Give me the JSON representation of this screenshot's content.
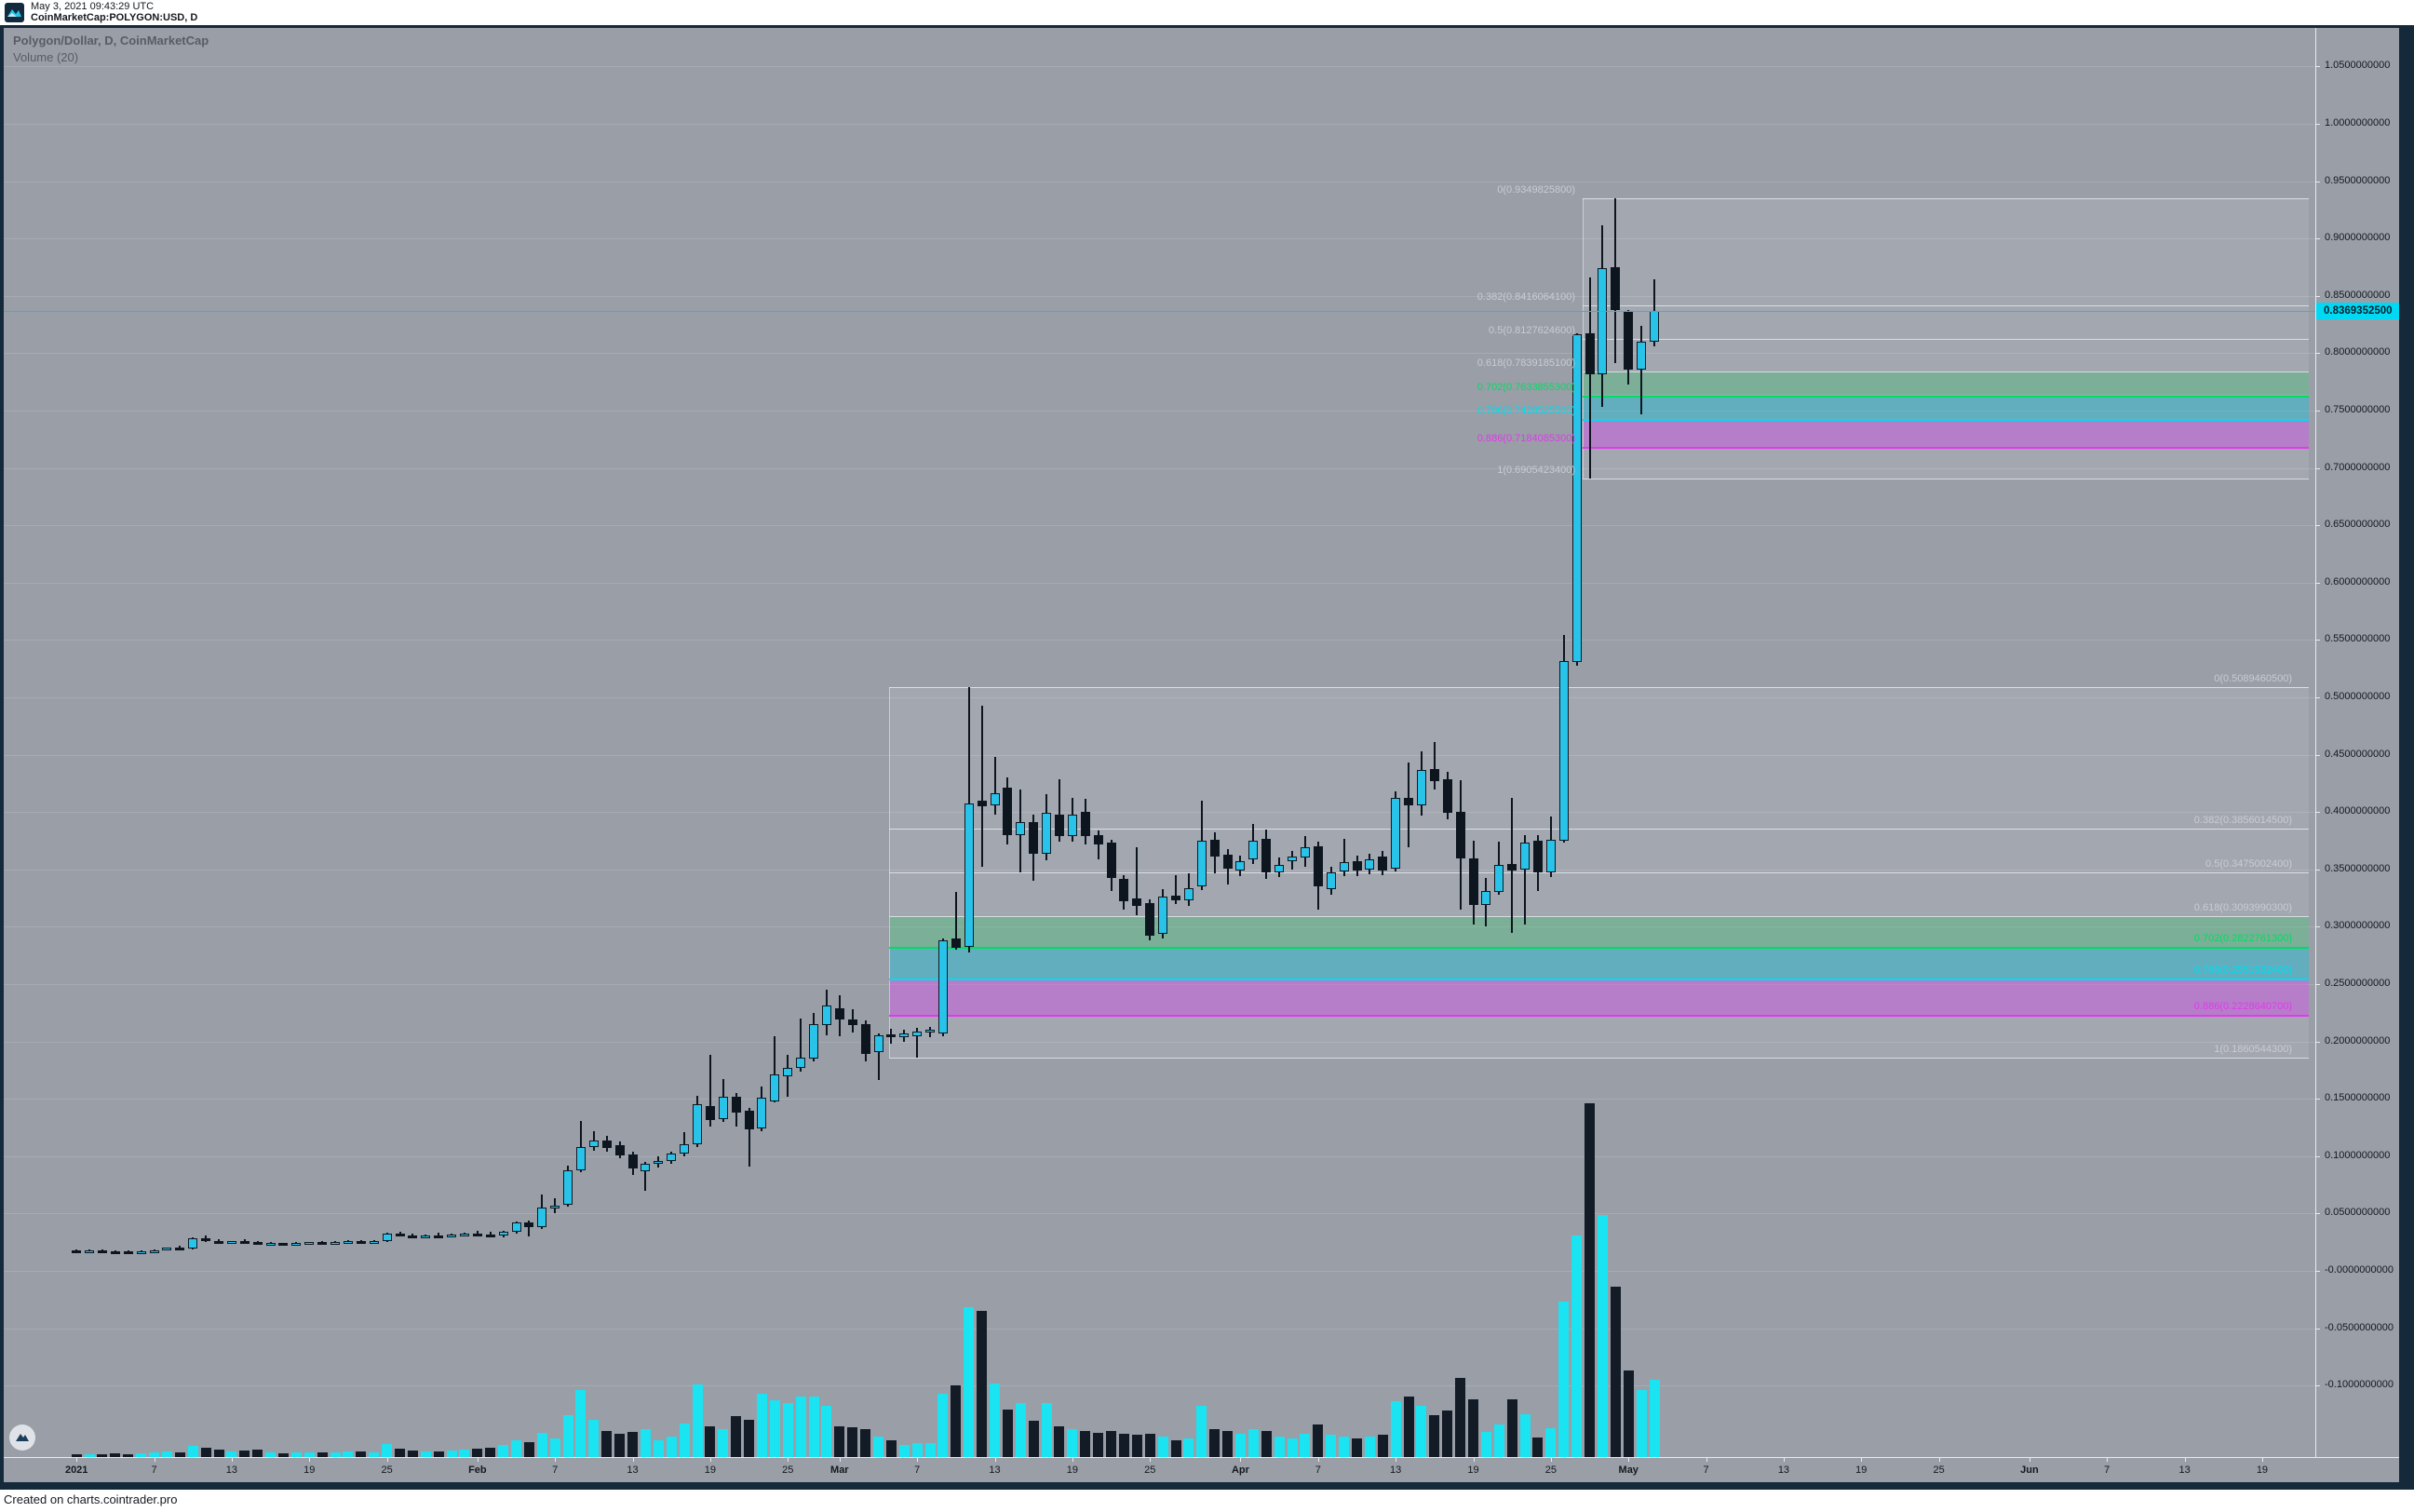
{
  "header": {
    "timestamp": "May 3, 2021 09:43:29 UTC",
    "symbol": "CoinMarketCap:POLYGON:USD, D"
  },
  "legend": {
    "title": "Polygon/Dollar, D, CoinMarketCap",
    "indicator": "Volume (20)"
  },
  "price_label": "0.8369352500",
  "footer": {
    "text": "Created on charts.cointrader.pro"
  },
  "colors": {
    "background": "#999ea7",
    "frame": "#14293a",
    "candle_up": "#29c3e9",
    "candle_down": "#0d151e",
    "volume_up": "#1ae3f2",
    "volume_down": "#131b26",
    "price_line": "#00c9e8",
    "price_tag_bg": "#00d9f4",
    "fib_gray": "#c9ccd2",
    "fib_green": "#00dd63",
    "fib_cyan": "#00dcf0",
    "fib_magenta": "#e438ee",
    "band_green": "rgba(60,190,110,0.38)",
    "band_teal": "rgba(0,185,215,0.40)",
    "band_magenta": "rgba(210,70,235,0.42)"
  },
  "y_axis": [
    {
      "v": 1.05,
      "label": "1.0500000000"
    },
    {
      "v": 1.0,
      "label": "1.0000000000"
    },
    {
      "v": 0.95,
      "label": "0.9500000000"
    },
    {
      "v": 0.9,
      "label": "0.9000000000"
    },
    {
      "v": 0.85,
      "label": "0.8500000000"
    },
    {
      "v": 0.8,
      "label": "0.8000000000"
    },
    {
      "v": 0.75,
      "label": "0.7500000000"
    },
    {
      "v": 0.7,
      "label": "0.7000000000"
    },
    {
      "v": 0.65,
      "label": "0.6500000000"
    },
    {
      "v": 0.6,
      "label": "0.6000000000"
    },
    {
      "v": 0.55,
      "label": "0.5500000000"
    },
    {
      "v": 0.5,
      "label": "0.5000000000"
    },
    {
      "v": 0.45,
      "label": "0.4500000000"
    },
    {
      "v": 0.4,
      "label": "0.4000000000"
    },
    {
      "v": 0.35,
      "label": "0.3500000000"
    },
    {
      "v": 0.3,
      "label": "0.3000000000"
    },
    {
      "v": 0.25,
      "label": "0.2500000000"
    },
    {
      "v": 0.2,
      "label": "0.2000000000"
    },
    {
      "v": 0.15,
      "label": "0.1500000000"
    },
    {
      "v": 0.1,
      "label": "0.1000000000"
    },
    {
      "v": 0.05,
      "label": "0.0500000000"
    },
    {
      "v": 0.0,
      "label": "-0.0000000000"
    },
    {
      "v": -0.05,
      "label": "-0.0500000000"
    },
    {
      "v": -0.1,
      "label": "-0.1000000000"
    }
  ],
  "x_axis": [
    {
      "label": "2021",
      "day": 0,
      "major": true
    },
    {
      "label": "7",
      "day": 6,
      "major": false
    },
    {
      "label": "13",
      "day": 12,
      "major": false
    },
    {
      "label": "19",
      "day": 18,
      "major": false
    },
    {
      "label": "25",
      "day": 24,
      "major": false
    },
    {
      "label": "Feb",
      "day": 31,
      "major": true
    },
    {
      "label": "7",
      "day": 37,
      "major": false
    },
    {
      "label": "13",
      "day": 43,
      "major": false
    },
    {
      "label": "19",
      "day": 49,
      "major": false
    },
    {
      "label": "25",
      "day": 55,
      "major": false
    },
    {
      "label": "Mar",
      "day": 59,
      "major": true
    },
    {
      "label": "7",
      "day": 65,
      "major": false
    },
    {
      "label": "13",
      "day": 71,
      "major": false
    },
    {
      "label": "19",
      "day": 77,
      "major": false
    },
    {
      "label": "25",
      "day": 83,
      "major": false
    },
    {
      "label": "Apr",
      "day": 90,
      "major": true
    },
    {
      "label": "7",
      "day": 96,
      "major": false
    },
    {
      "label": "13",
      "day": 102,
      "major": false
    },
    {
      "label": "19",
      "day": 108,
      "major": false
    },
    {
      "label": "25",
      "day": 114,
      "major": false
    },
    {
      "label": "May",
      "day": 120,
      "major": true
    },
    {
      "label": "7",
      "day": 126,
      "major": false
    },
    {
      "label": "13",
      "day": 132,
      "major": false
    },
    {
      "label": "19",
      "day": 138,
      "major": false
    },
    {
      "label": "25",
      "day": 144,
      "major": false
    },
    {
      "label": "Jun",
      "day": 151,
      "major": true
    },
    {
      "label": "7",
      "day": 157,
      "major": false
    },
    {
      "label": "13",
      "day": 163,
      "major": false
    },
    {
      "label": "19",
      "day": 169,
      "major": false
    }
  ],
  "fib_upper": {
    "levels": [
      {
        "label": "0(0.9349825800)",
        "value": 0.93498258,
        "color": "gray"
      },
      {
        "label": "0.382(0.8416064100)",
        "value": 0.84160641,
        "color": "gray"
      },
      {
        "label": "0.5(0.8127624600)",
        "value": 0.81276246,
        "color": "gray"
      },
      {
        "label": "0.618(0.7839185100)",
        "value": 0.78391851,
        "color": "gray"
      },
      {
        "label": "0.702(0.7633855300)",
        "value": 0.76338553,
        "color": "green"
      },
      {
        "label": "0.786(0.7428525500)",
        "value": 0.74285255,
        "color": "cyan"
      },
      {
        "label": "0.886(0.7184085300)",
        "value": 0.71840853,
        "color": "magenta"
      },
      {
        "label": "1(0.6905423400)",
        "value": 0.69054234,
        "color": "gray"
      }
    ]
  },
  "fib_lower": {
    "levels": [
      {
        "label": "0(0.5089460500)",
        "value": 0.50894605,
        "color": "gray"
      },
      {
        "label": "0.382(0.3856014500)",
        "value": 0.38560145,
        "color": "gray"
      },
      {
        "label": "0.5(0.3475002400)",
        "value": 0.34750024,
        "color": "gray"
      },
      {
        "label": "0.618(0.3093990300)",
        "value": 0.30939903,
        "color": "gray"
      },
      {
        "label": "0.702(0.2822761300)",
        "value": 0.28227613,
        "color": "green"
      },
      {
        "label": "0.786(0.2551532400)",
        "value": 0.25515324,
        "color": "cyan"
      },
      {
        "label": "0.886(0.2228640700)",
        "value": 0.22286407,
        "color": "magenta"
      },
      {
        "label": "1(0.1860544300)",
        "value": 0.18605443,
        "color": "gray"
      }
    ]
  },
  "chart_data": {
    "type": "candlestick+volume",
    "title": "Polygon/Dollar, D, CoinMarketCap",
    "symbol": "POLYGON:USD",
    "interval": "D",
    "start_date": "2021-01-01",
    "last_price": 0.83693525,
    "ylim": [
      -0.125,
      1.08
    ],
    "columns": [
      "open",
      "high",
      "low",
      "close",
      "volume_rel"
    ],
    "candles": [
      [
        0.018,
        0.019,
        0.017,
        0.0175,
        3
      ],
      [
        0.0175,
        0.0185,
        0.0168,
        0.0178,
        3
      ],
      [
        0.0178,
        0.0186,
        0.017,
        0.0172,
        3
      ],
      [
        0.0172,
        0.018,
        0.0162,
        0.0168,
        4
      ],
      [
        0.0168,
        0.0176,
        0.016,
        0.0165,
        3
      ],
      [
        0.0165,
        0.0178,
        0.0162,
        0.0174,
        4
      ],
      [
        0.0174,
        0.0188,
        0.017,
        0.018,
        5
      ],
      [
        0.018,
        0.0205,
        0.0176,
        0.02,
        6
      ],
      [
        0.02,
        0.0218,
        0.0192,
        0.0196,
        5
      ],
      [
        0.0196,
        0.0292,
        0.019,
        0.0282,
        12
      ],
      [
        0.0282,
        0.0305,
        0.0255,
        0.0262,
        10
      ],
      [
        0.0262,
        0.0275,
        0.0238,
        0.0248,
        8
      ],
      [
        0.0248,
        0.0262,
        0.0242,
        0.0256,
        6
      ],
      [
        0.0256,
        0.0278,
        0.0248,
        0.025,
        7
      ],
      [
        0.025,
        0.0258,
        0.0228,
        0.0236,
        8
      ],
      [
        0.0236,
        0.0248,
        0.0226,
        0.024,
        5
      ],
      [
        0.024,
        0.0247,
        0.023,
        0.0235,
        4
      ],
      [
        0.0235,
        0.0249,
        0.0229,
        0.0244,
        5
      ],
      [
        0.0244,
        0.0254,
        0.0236,
        0.0249,
        5
      ],
      [
        0.0249,
        0.026,
        0.024,
        0.0246,
        5
      ],
      [
        0.0246,
        0.0257,
        0.0239,
        0.0253,
        5
      ],
      [
        0.0253,
        0.0268,
        0.0246,
        0.0261,
        6
      ],
      [
        0.0261,
        0.0269,
        0.0248,
        0.0254,
        6
      ],
      [
        0.0254,
        0.0264,
        0.0244,
        0.0259,
        5
      ],
      [
        0.0259,
        0.033,
        0.025,
        0.0322,
        14
      ],
      [
        0.0322,
        0.034,
        0.03,
        0.031,
        9
      ],
      [
        0.031,
        0.0325,
        0.0295,
        0.0302,
        7
      ],
      [
        0.0302,
        0.0318,
        0.0292,
        0.0312,
        6
      ],
      [
        0.0312,
        0.033,
        0.03,
        0.0308,
        6
      ],
      [
        0.0308,
        0.0322,
        0.0296,
        0.0316,
        7
      ],
      [
        0.0316,
        0.0336,
        0.0305,
        0.0328,
        8
      ],
      [
        0.0328,
        0.0345,
        0.0312,
        0.032,
        9
      ],
      [
        0.032,
        0.0338,
        0.0298,
        0.0305,
        10
      ],
      [
        0.0305,
        0.035,
        0.029,
        0.034,
        13
      ],
      [
        0.034,
        0.0432,
        0.0328,
        0.042,
        18
      ],
      [
        0.042,
        0.0438,
        0.03,
        0.038,
        16
      ],
      [
        0.038,
        0.0666,
        0.0368,
        0.055,
        26
      ],
      [
        0.056,
        0.063,
        0.0505,
        0.057,
        20
      ],
      [
        0.0575,
        0.092,
        0.0558,
        0.0876,
        45
      ],
      [
        0.088,
        0.131,
        0.086,
        0.108,
        72
      ],
      [
        0.108,
        0.122,
        0.1045,
        0.114,
        40
      ],
      [
        0.114,
        0.118,
        0.1035,
        0.107,
        28
      ],
      [
        0.1095,
        0.113,
        0.0985,
        0.101,
        25
      ],
      [
        0.1015,
        0.104,
        0.0836,
        0.089,
        27
      ],
      [
        0.0865,
        0.095,
        0.07,
        0.0935,
        30
      ],
      [
        0.0935,
        0.1,
        0.0905,
        0.096,
        18
      ],
      [
        0.096,
        0.104,
        0.093,
        0.102,
        22
      ],
      [
        0.102,
        0.121,
        0.1,
        0.11,
        36
      ],
      [
        0.11,
        0.153,
        0.108,
        0.145,
        78
      ],
      [
        0.1437,
        0.188,
        0.126,
        0.1315,
        33
      ],
      [
        0.132,
        0.167,
        0.13,
        0.152,
        30
      ],
      [
        0.152,
        0.155,
        0.126,
        0.138,
        44
      ],
      [
        0.1396,
        0.142,
        0.0909,
        0.1234,
        40
      ],
      [
        0.124,
        0.161,
        0.122,
        0.151,
        68
      ],
      [
        0.148,
        0.2045,
        0.147,
        0.171,
        61
      ],
      [
        0.17,
        0.188,
        0.152,
        0.177,
        58
      ],
      [
        0.177,
        0.22,
        0.174,
        0.186,
        65
      ],
      [
        0.185,
        0.225,
        0.183,
        0.215,
        65
      ],
      [
        0.214,
        0.245,
        0.205,
        0.231,
        55
      ],
      [
        0.229,
        0.24,
        0.2045,
        0.219,
        33
      ],
      [
        0.219,
        0.228,
        0.208,
        0.214,
        32
      ],
      [
        0.215,
        0.218,
        0.1826,
        0.189,
        30
      ],
      [
        0.191,
        0.207,
        0.166,
        0.205,
        22
      ],
      [
        0.206,
        0.211,
        0.198,
        0.204,
        18
      ],
      [
        0.204,
        0.21,
        0.2,
        0.207,
        13
      ],
      [
        0.2045,
        0.212,
        0.1861,
        0.2086,
        15
      ],
      [
        0.2086,
        0.213,
        0.204,
        0.21,
        15
      ],
      [
        0.207,
        0.29,
        0.2045,
        0.288,
        68
      ],
      [
        0.29,
        0.33,
        0.28,
        0.282,
        77
      ],
      [
        0.2825,
        0.5089,
        0.2776,
        0.4075,
        161
      ],
      [
        0.41,
        0.493,
        0.352,
        0.405,
        157
      ],
      [
        0.406,
        0.448,
        0.398,
        0.416,
        79
      ],
      [
        0.421,
        0.43,
        0.372,
        0.38,
        51
      ],
      [
        0.38,
        0.4196,
        0.347,
        0.391,
        58
      ],
      [
        0.391,
        0.398,
        0.34,
        0.3636,
        39
      ],
      [
        0.364,
        0.4155,
        0.358,
        0.399,
        58
      ],
      [
        0.398,
        0.4285,
        0.374,
        0.379,
        33
      ],
      [
        0.379,
        0.412,
        0.374,
        0.398,
        30
      ],
      [
        0.4,
        0.4115,
        0.372,
        0.379,
        28
      ],
      [
        0.38,
        0.384,
        0.359,
        0.372,
        26
      ],
      [
        0.373,
        0.376,
        0.331,
        0.3425,
        28
      ],
      [
        0.342,
        0.345,
        0.315,
        0.322,
        25
      ],
      [
        0.325,
        0.369,
        0.31,
        0.318,
        24
      ],
      [
        0.321,
        0.324,
        0.288,
        0.292,
        25
      ],
      [
        0.294,
        0.333,
        0.29,
        0.326,
        22
      ],
      [
        0.327,
        0.345,
        0.32,
        0.323,
        18
      ],
      [
        0.323,
        0.3466,
        0.318,
        0.334,
        20
      ],
      [
        0.335,
        0.41,
        0.332,
        0.375,
        55
      ],
      [
        0.376,
        0.382,
        0.3466,
        0.361,
        30
      ],
      [
        0.363,
        0.368,
        0.337,
        0.3506,
        28
      ],
      [
        0.349,
        0.362,
        0.344,
        0.357,
        25
      ],
      [
        0.359,
        0.39,
        0.355,
        0.375,
        30
      ],
      [
        0.377,
        0.385,
        0.342,
        0.347,
        28
      ],
      [
        0.347,
        0.36,
        0.343,
        0.354,
        22
      ],
      [
        0.357,
        0.366,
        0.35,
        0.361,
        20
      ],
      [
        0.36,
        0.379,
        0.352,
        0.369,
        25
      ],
      [
        0.37,
        0.374,
        0.315,
        0.335,
        35
      ],
      [
        0.333,
        0.352,
        0.328,
        0.347,
        24
      ],
      [
        0.348,
        0.3766,
        0.344,
        0.356,
        22
      ],
      [
        0.357,
        0.362,
        0.344,
        0.349,
        20
      ],
      [
        0.35,
        0.364,
        0.346,
        0.359,
        22
      ],
      [
        0.361,
        0.366,
        0.345,
        0.349,
        24
      ],
      [
        0.351,
        0.418,
        0.348,
        0.412,
        60
      ],
      [
        0.412,
        0.443,
        0.369,
        0.406,
        65
      ],
      [
        0.406,
        0.453,
        0.397,
        0.4366,
        55
      ],
      [
        0.4375,
        0.461,
        0.42,
        0.427,
        45
      ],
      [
        0.4285,
        0.435,
        0.394,
        0.399,
        50
      ],
      [
        0.4,
        0.428,
        0.315,
        0.3596,
        85
      ],
      [
        0.3596,
        0.375,
        0.302,
        0.319,
        62
      ],
      [
        0.319,
        0.3425,
        0.3,
        0.331,
        27
      ],
      [
        0.33,
        0.374,
        0.328,
        0.354,
        35
      ],
      [
        0.3547,
        0.412,
        0.295,
        0.349,
        62
      ],
      [
        0.35,
        0.38,
        0.302,
        0.373,
        46
      ],
      [
        0.375,
        0.38,
        0.331,
        0.3474,
        21
      ],
      [
        0.3474,
        0.396,
        0.343,
        0.3758,
        31
      ],
      [
        0.375,
        0.5544,
        0.373,
        0.532,
        167
      ],
      [
        0.531,
        0.817,
        0.528,
        0.8166,
        238
      ],
      [
        0.8174,
        0.866,
        0.6905,
        0.7816,
        380
      ],
      [
        0.7816,
        0.9115,
        0.753,
        0.874,
        260
      ],
      [
        0.875,
        0.935,
        0.7914,
        0.8377,
        183
      ],
      [
        0.836,
        0.8377,
        0.7727,
        0.7857,
        93
      ],
      [
        0.7857,
        0.8239,
        0.7468,
        0.81,
        72
      ],
      [
        0.81,
        0.8644,
        0.806,
        0.8369,
        83
      ]
    ]
  }
}
